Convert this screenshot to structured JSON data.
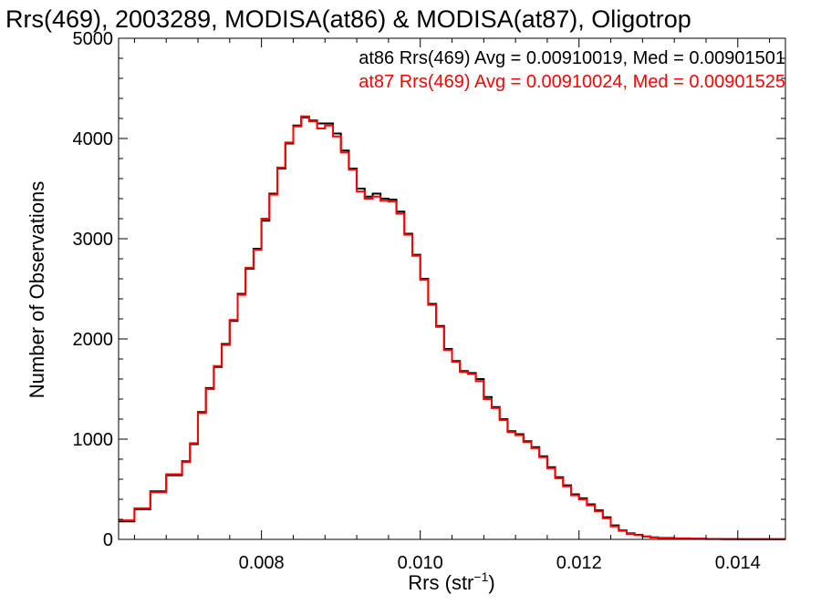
{
  "chart_data": {
    "type": "line",
    "title": "Rrs(469), 2003289, MODISA(at86) & MODISA(at87), Oligotrop",
    "xlabel_base": "Rrs (str",
    "xlabel_sup": "−1",
    "xlabel_close": ")",
    "ylabel": "Number of Observations",
    "xlim": [
      0.0062,
      0.0146
    ],
    "ylim": [
      0,
      5000
    ],
    "xticks": [
      0.008,
      0.01,
      0.012,
      0.014
    ],
    "xtick_labels": [
      "0.008",
      "0.010",
      "0.012",
      "0.014"
    ],
    "yticks": [
      0,
      1000,
      2000,
      3000,
      4000,
      5000
    ],
    "ytick_labels": [
      "0",
      "1000",
      "2000",
      "3000",
      "4000",
      "5000"
    ],
    "legend_position": "top-right",
    "series": [
      {
        "name": "at86 Rrs(469) Avg = 0.00910019, Med = 0.00901501",
        "color": "#000000",
        "style": "step",
        "x": [
          0.0062,
          0.0064,
          0.0066,
          0.0068,
          0.007,
          0.0071,
          0.0072,
          0.0073,
          0.0074,
          0.0075,
          0.0076,
          0.0077,
          0.0078,
          0.0079,
          0.008,
          0.0081,
          0.0082,
          0.0083,
          0.0084,
          0.0085,
          0.0086,
          0.0087,
          0.0088,
          0.0089,
          0.009,
          0.0091,
          0.0092,
          0.0093,
          0.0094,
          0.0095,
          0.0096,
          0.0097,
          0.0098,
          0.0099,
          0.01,
          0.0101,
          0.0102,
          0.0103,
          0.0104,
          0.0105,
          0.0106,
          0.0107,
          0.0108,
          0.0109,
          0.011,
          0.0111,
          0.0112,
          0.0113,
          0.0114,
          0.0115,
          0.0116,
          0.0117,
          0.0118,
          0.0119,
          0.012,
          0.0121,
          0.0122,
          0.0123,
          0.0124,
          0.0125,
          0.0126,
          0.0127,
          0.0128,
          0.0129,
          0.013,
          0.0132,
          0.0134,
          0.0136,
          0.0138,
          0.014,
          0.0142,
          0.0144,
          0.0146
        ],
        "y": [
          180,
          300,
          480,
          640,
          780,
          950,
          1270,
          1510,
          1720,
          1950,
          2180,
          2450,
          2700,
          2900,
          3180,
          3450,
          3700,
          3950,
          4130,
          4210,
          4180,
          4150,
          4150,
          4050,
          3880,
          3700,
          3500,
          3420,
          3450,
          3400,
          3390,
          3270,
          3050,
          2840,
          2600,
          2350,
          2130,
          1900,
          1780,
          1680,
          1660,
          1600,
          1420,
          1320,
          1200,
          1080,
          1050,
          980,
          920,
          830,
          720,
          620,
          540,
          450,
          410,
          350,
          290,
          220,
          140,
          90,
          60,
          45,
          30,
          20,
          15,
          10,
          7,
          5,
          4,
          3,
          3,
          3,
          3
        ]
      },
      {
        "name": "at87 Rrs(469) Avg = 0.00910024, Med = 0.00901525",
        "color": "#ff0000",
        "style": "step",
        "x": [
          0.0062,
          0.0064,
          0.0066,
          0.0068,
          0.007,
          0.0071,
          0.0072,
          0.0073,
          0.0074,
          0.0075,
          0.0076,
          0.0077,
          0.0078,
          0.0079,
          0.008,
          0.0081,
          0.0082,
          0.0083,
          0.0084,
          0.0085,
          0.0086,
          0.0087,
          0.0088,
          0.0089,
          0.009,
          0.0091,
          0.0092,
          0.0093,
          0.0094,
          0.0095,
          0.0096,
          0.0097,
          0.0098,
          0.0099,
          0.01,
          0.0101,
          0.0102,
          0.0103,
          0.0104,
          0.0105,
          0.0106,
          0.0107,
          0.0108,
          0.0109,
          0.011,
          0.0111,
          0.0112,
          0.0113,
          0.0114,
          0.0115,
          0.0116,
          0.0117,
          0.0118,
          0.0119,
          0.012,
          0.0121,
          0.0122,
          0.0123,
          0.0124,
          0.0125,
          0.0126,
          0.0127,
          0.0128,
          0.0129,
          0.013,
          0.0132,
          0.0134,
          0.0136,
          0.0138,
          0.014,
          0.0142,
          0.0144,
          0.0146
        ],
        "y": [
          190,
          310,
          470,
          650,
          770,
          960,
          1260,
          1500,
          1730,
          1940,
          2190,
          2440,
          2710,
          2890,
          3200,
          3440,
          3710,
          3960,
          4120,
          4220,
          4170,
          4100,
          4130,
          4020,
          3860,
          3690,
          3470,
          3400,
          3420,
          3380,
          3370,
          3250,
          3040,
          2830,
          2590,
          2340,
          2120,
          1890,
          1770,
          1670,
          1650,
          1580,
          1400,
          1310,
          1190,
          1070,
          1040,
          970,
          910,
          820,
          710,
          610,
          530,
          440,
          400,
          340,
          280,
          210,
          130,
          85,
          55,
          42,
          28,
          18,
          13,
          9,
          6,
          4,
          3,
          3,
          3,
          3,
          3
        ]
      }
    ]
  }
}
